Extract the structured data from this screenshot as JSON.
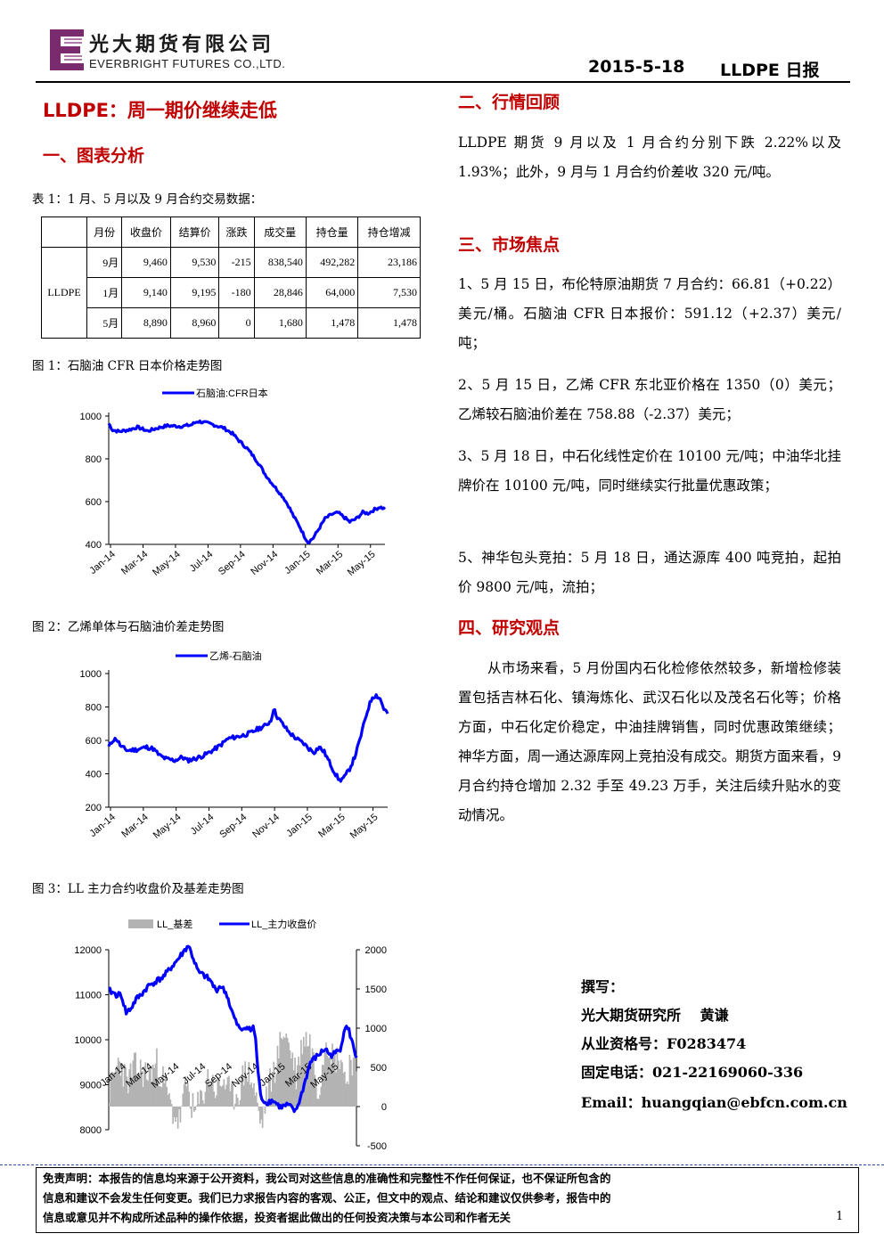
{
  "header": {
    "company_cn": "光大期货有限公司",
    "company_en": "EVERBRIGHT FUTURES CO.,LTD.",
    "date": "2015-5-18",
    "report_name": "LLDPE 日报"
  },
  "left": {
    "main_title": "LLDPE：周一期价继续走低",
    "section1_title": "一、图表分析",
    "table_caption": "表 1：1 月、5 月以及 9 月合约交易数据：",
    "table": {
      "headers": [
        "月份",
        "收盘价",
        "结算价",
        "涨跌",
        "成交量",
        "持仓量",
        "持仓增减"
      ],
      "product": "LLDPE",
      "rows": [
        [
          "9月",
          "9,460",
          "9,530",
          "-215",
          "838,540",
          "492,282",
          "23,186"
        ],
        [
          "1月",
          "9,140",
          "9,195",
          "-180",
          "28,846",
          "64,000",
          "7,530"
        ],
        [
          "5月",
          "8,890",
          "8,960",
          "0",
          "1,680",
          "1,478",
          "1,478"
        ]
      ]
    },
    "fig1_caption": "图 1：石脑油 CFR 日本价格走势图",
    "fig2_caption": "图 2：乙烯单体与石脑油价差走势图",
    "fig3_caption": "图 3：LL 主力合约收盘价及基差走势图"
  },
  "right": {
    "section2_title": "二、行情回顾",
    "section2_text": "LLDPE 期货 9 月以及 1 月合约分别下跌 2.22%以及 1.93%；此外，9 月与 1 月合约价差收 320 元/吨。",
    "section3_title": "三、市场焦点",
    "focus_items": [
      "1、5 月 15 日，布伦特原油期货 7 月合约：66.81（+0.22）美元/桶。石脑油 CFR 日本报价：591.12（+2.37）美元/吨；",
      "2、5 月 15 日，乙烯 CFR 东北亚价格在 1350（0）美元；乙烯较石脑油价差在 758.88（-2.37）美元；",
      "3、5 月 18 日，中石化线性定价在 10100 元/吨；中油华北挂牌价在 10100 元/吨，同时继续实行批量优惠政策；",
      "5、神华包头竞拍：5 月 18 日，通达源库 400 吨竞拍，起拍价 9800 元/吨，流拍；"
    ],
    "section4_title": "四、研究观点",
    "section4_text": "从市场来看，5 月份国内石化检修依然较多，新增检修装置包括吉林石化、镇海炼化、武汉石化以及茂名石化等；价格方面，中石化定价稳定，中油挂牌销售，同时优惠政策继续；神华方面，周一通达源库网上竞拍没有成交。期货方面来看，9 月合约持仓增加 2.32 手至 49.23 万手，关注后续升贴水的变动情况。",
    "author_label": "撰写：",
    "author_line": "光大期货研究所　 黄谦",
    "license": "从业资格号：F0283474",
    "phone": "固定电话：021-22169060-336",
    "email": "Email：huangqian@ebfcn.com.cn"
  },
  "footer": {
    "disclaimer_1": "免责声明：本报告的信息均来源于公开资料，我公司对这些信息的准确性和完整性不作任何保证，也不保证所包含的",
    "disclaimer_2": "信息和建议不会发生任何变更。我们已力求报告内容的客观、公正，但文中的观点、结论和建议仅供参考，报告中的",
    "disclaimer_3": "信息或意见并不构成所述品种的操作依据，投资者据此做出的任何投资决策与本公司和作者无关",
    "page": "1"
  },
  "chart_data": [
    {
      "type": "line",
      "series": [
        {
          "name": "石脑油:CFR日本",
          "color": "#0000ff",
          "anchors": [
            [
              0,
              965
            ],
            [
              3,
              935
            ],
            [
              8,
              928
            ],
            [
              15,
              935
            ],
            [
              22,
              948
            ],
            [
              30,
              930
            ],
            [
              38,
              945
            ],
            [
              45,
              955
            ],
            [
              55,
              952
            ],
            [
              63,
              958
            ],
            [
              68,
              975
            ],
            [
              72,
              972
            ],
            [
              80,
              960
            ],
            [
              88,
              945
            ],
            [
              95,
              918
            ],
            [
              100,
              885
            ],
            [
              106,
              850
            ],
            [
              112,
              805
            ],
            [
              116,
              770
            ],
            [
              120,
              728
            ],
            [
              125,
              688
            ],
            [
              130,
              650
            ],
            [
              134,
              620
            ],
            [
              138,
              580
            ],
            [
              142,
              530
            ],
            [
              146,
              490
            ],
            [
              150,
              440
            ],
            [
              153,
              410
            ],
            [
              157,
              430
            ],
            [
              162,
              480
            ],
            [
              166,
              520
            ],
            [
              171,
              540
            ],
            [
              176,
              548
            ],
            [
              180,
              530
            ],
            [
              185,
              505
            ],
            [
              190,
              520
            ],
            [
              195,
              550
            ],
            [
              199,
              545
            ],
            [
              204,
              563
            ],
            [
              208,
              575
            ],
            [
              212,
              565
            ]
          ]
        }
      ],
      "x_tick_labels": [
        "Jan-14",
        "Mar-14",
        "May-14",
        "Jul-14",
        "Sep-14",
        "Nov-14",
        "Jan-15",
        "Mar-15",
        "May-15"
      ],
      "y_tick_labels": [
        "1000",
        "800",
        "600",
        "400"
      ],
      "ylim": [
        400,
        1000
      ]
    },
    {
      "type": "line",
      "series": [
        {
          "name": "乙烯-石脑油",
          "color": "#0000ff",
          "anchors": [
            [
              0,
              560
            ],
            [
              3,
              600
            ],
            [
              6,
              610
            ],
            [
              10,
              560
            ],
            [
              15,
              540
            ],
            [
              22,
              545
            ],
            [
              30,
              560
            ],
            [
              35,
              550
            ],
            [
              40,
              510
            ],
            [
              45,
              490
            ],
            [
              52,
              480
            ],
            [
              58,
              500
            ],
            [
              62,
              480
            ],
            [
              68,
              490
            ],
            [
              75,
              510
            ],
            [
              82,
              540
            ],
            [
              88,
              570
            ],
            [
              94,
              610
            ],
            [
              100,
              620
            ],
            [
              106,
              630
            ],
            [
              112,
              645
            ],
            [
              118,
              670
            ],
            [
              124,
              690
            ],
            [
              128,
              720
            ],
            [
              130,
              790
            ],
            [
              133,
              740
            ],
            [
              137,
              700
            ],
            [
              142,
              650
            ],
            [
              148,
              610
            ],
            [
              154,
              580
            ],
            [
              158,
              550
            ],
            [
              162,
              530
            ],
            [
              166,
              560
            ],
            [
              170,
              530
            ],
            [
              174,
              470
            ],
            [
              178,
              410
            ],
            [
              182,
              360
            ],
            [
              186,
              380
            ],
            [
              190,
              430
            ],
            [
              194,
              500
            ],
            [
              198,
              600
            ],
            [
              202,
              720
            ],
            [
              205,
              800
            ],
            [
              208,
              860
            ],
            [
              211,
              870
            ],
            [
              214,
              850
            ],
            [
              217,
              790
            ],
            [
              220,
              760
            ]
          ]
        }
      ],
      "x_tick_labels": [
        "Jan-14",
        "Mar-14",
        "May-14",
        "Jul-14",
        "Sep-14",
        "Nov-14",
        "Jan-15",
        "Mar-15",
        "May-15"
      ],
      "y_tick_labels": [
        "1000",
        "800",
        "600",
        "400",
        "200"
      ],
      "ylim": [
        200,
        1000
      ]
    },
    {
      "type": "bar+line",
      "series": [
        {
          "name": "LL_基差",
          "type": "bar",
          "color": "#b3b3b3",
          "axis": "right",
          "anchors": [
            [
              0,
              200
            ],
            [
              8,
              600
            ],
            [
              14,
              300
            ],
            [
              20,
              500
            ],
            [
              26,
              450
            ],
            [
              32,
              400
            ],
            [
              38,
              550
            ],
            [
              44,
              300
            ],
            [
              50,
              -50
            ],
            [
              56,
              -200
            ],
            [
              62,
              300
            ],
            [
              68,
              -100
            ],
            [
              74,
              100
            ],
            [
              80,
              400
            ],
            [
              86,
              200
            ],
            [
              92,
              350
            ],
            [
              98,
              100
            ],
            [
              104,
              200
            ],
            [
              110,
              500
            ],
            [
              116,
              250
            ],
            [
              122,
              -250
            ],
            [
              128,
              250
            ],
            [
              134,
              550
            ],
            [
              140,
              1000
            ],
            [
              146,
              700
            ],
            [
              150,
              400
            ],
            [
              156,
              900
            ],
            [
              162,
              800
            ],
            [
              168,
              200
            ],
            [
              174,
              900
            ],
            [
              180,
              600
            ],
            [
              186,
              650
            ],
            [
              190,
              300
            ],
            [
              194,
              650
            ],
            [
              198,
              450
            ]
          ]
        },
        {
          "name": "LL_主力收盘价",
          "type": "line",
          "color": "#0000ff",
          "axis": "left",
          "anchors": [
            [
              0,
              11100
            ],
            [
              6,
              11000
            ],
            [
              10,
              11000
            ],
            [
              14,
              10600
            ],
            [
              18,
              10700
            ],
            [
              22,
              10900
            ],
            [
              26,
              11000
            ],
            [
              32,
              11200
            ],
            [
              38,
              11300
            ],
            [
              44,
              11400
            ],
            [
              50,
              11600
            ],
            [
              56,
              11800
            ],
            [
              60,
              11950
            ],
            [
              64,
              12100
            ],
            [
              68,
              11800
            ],
            [
              72,
              11500
            ],
            [
              78,
              11400
            ],
            [
              82,
              11300
            ],
            [
              86,
              11100
            ],
            [
              90,
              11200
            ],
            [
              95,
              11000
            ],
            [
              98,
              10700
            ],
            [
              102,
              10400
            ],
            [
              106,
              10200
            ],
            [
              110,
              10300
            ],
            [
              114,
              10200
            ],
            [
              116,
              10300
            ],
            [
              118,
              10000
            ],
            [
              120,
              9300
            ],
            [
              122,
              8750
            ],
            [
              126,
              8600
            ],
            [
              132,
              8650
            ],
            [
              138,
              8500
            ],
            [
              144,
              8550
            ],
            [
              150,
              8400
            ],
            [
              154,
              8700
            ],
            [
              158,
              9100
            ],
            [
              162,
              9500
            ],
            [
              166,
              9600
            ],
            [
              170,
              9700
            ],
            [
              174,
              9800
            ],
            [
              178,
              9650
            ],
            [
              182,
              9700
            ],
            [
              186,
              9800
            ],
            [
              190,
              10300
            ],
            [
              193,
              10200
            ],
            [
              196,
              9900
            ],
            [
              199,
              9600
            ]
          ]
        }
      ],
      "x_tick_labels": [
        "Jan-14",
        "Mar-14",
        "May-14",
        "Jul-14",
        "Sep-14",
        "Nov-14",
        "Jan-15",
        "Mar-15",
        "May-15"
      ],
      "y_left_tick_labels": [
        "12000",
        "11000",
        "10000",
        "9000",
        "8000"
      ],
      "y_right_tick_labels": [
        "2000",
        "1500",
        "1000",
        "500",
        "0",
        "-500"
      ],
      "ylim_left": [
        8000,
        12000
      ],
      "ylim_right": [
        -500,
        2000
      ]
    }
  ]
}
